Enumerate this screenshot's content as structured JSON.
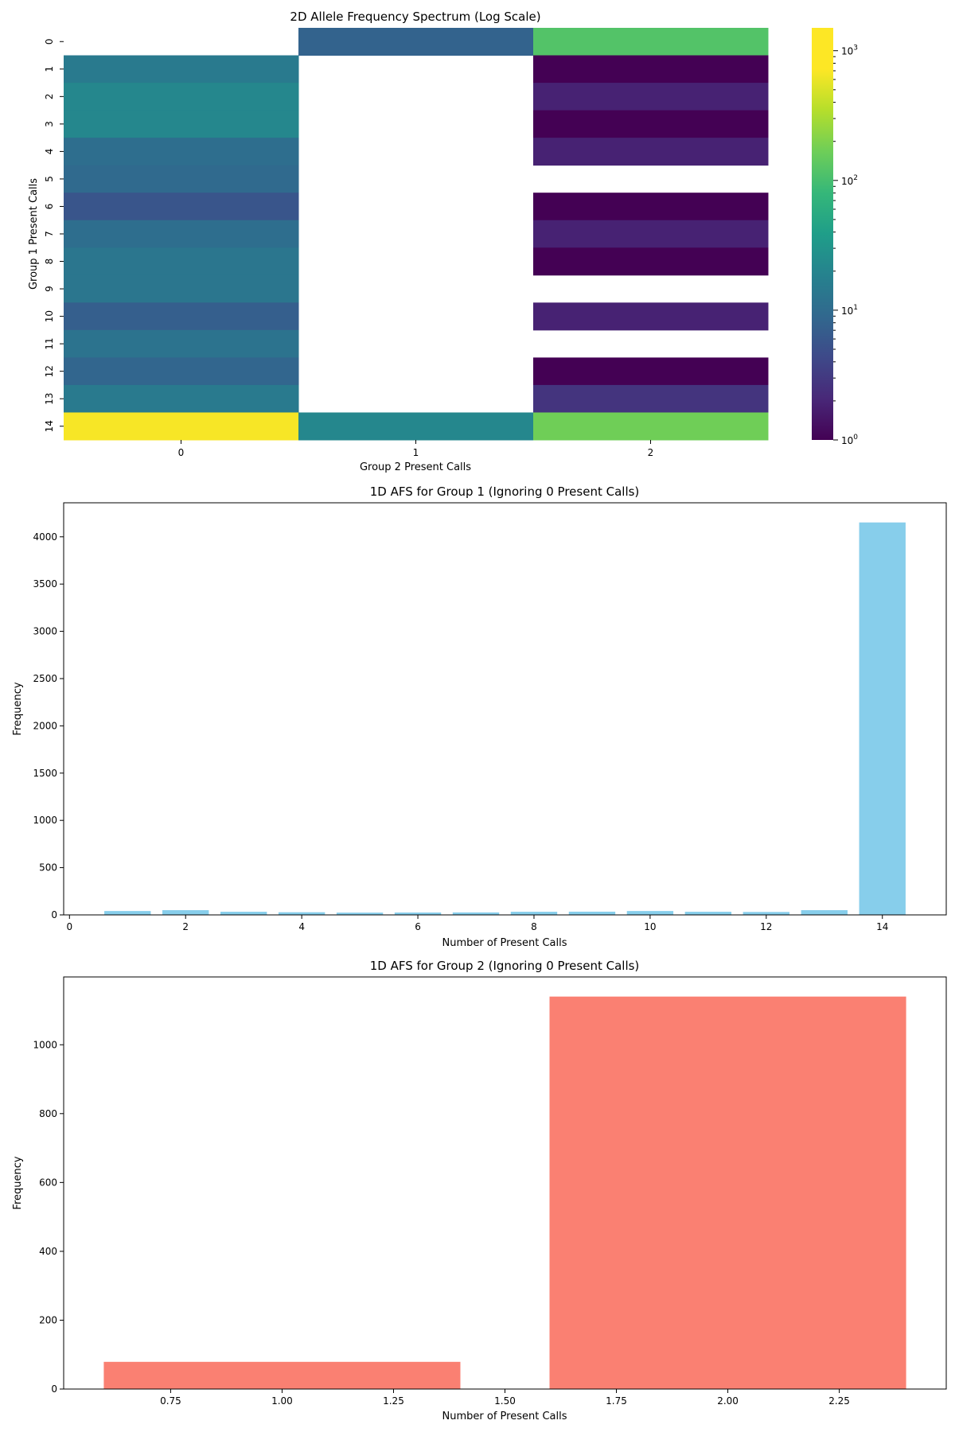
{
  "chart_data": [
    {
      "type": "heatmap",
      "title": "2D Allele Frequency Spectrum (Log Scale)",
      "xlabel": "Group 2 Present Calls",
      "ylabel": "Group 1 Present Calls",
      "x_categories": [
        "0",
        "1",
        "2"
      ],
      "y_categories": [
        "0",
        "1",
        "2",
        "3",
        "4",
        "5",
        "6",
        "7",
        "8",
        "9",
        "10",
        "11",
        "12",
        "13",
        "14"
      ],
      "values": [
        [
          null,
          10,
          200
        ],
        [
          20,
          null,
          1
        ],
        [
          30,
          null,
          2
        ],
        [
          30,
          null,
          1
        ],
        [
          14,
          null,
          2
        ],
        [
          12,
          null,
          null
        ],
        [
          7,
          null,
          1
        ],
        [
          14,
          null,
          2
        ],
        [
          18,
          null,
          1
        ],
        [
          18,
          null,
          null
        ],
        [
          9,
          null,
          2
        ],
        [
          16,
          null,
          null
        ],
        [
          11,
          null,
          1
        ],
        [
          20,
          null,
          3
        ],
        [
          1400,
          30,
          300
        ]
      ],
      "color_scale": "log",
      "colormap": "viridis",
      "colorbar_range": [
        1,
        1500
      ],
      "colorbar_ticks": [
        {
          "value": 1,
          "label": "10",
          "exp": "0"
        },
        {
          "value": 10,
          "label": "10",
          "exp": "1"
        },
        {
          "value": 100,
          "label": "10",
          "exp": "2"
        },
        {
          "value": 1000,
          "label": "10",
          "exp": "3"
        }
      ]
    },
    {
      "type": "bar",
      "title": "1D AFS for Group 1 (Ignoring 0 Present Calls)",
      "xlabel": "Number of Present Calls",
      "ylabel": "Frequency",
      "x": [
        1,
        2,
        3,
        4,
        5,
        6,
        7,
        8,
        9,
        10,
        11,
        12,
        13,
        14
      ],
      "values": [
        41,
        50,
        33,
        28,
        24,
        25,
        26,
        33,
        34,
        41,
        33,
        31,
        50,
        4152
      ],
      "color": "#87ceeb",
      "xlim": [
        -0.1,
        15.1
      ],
      "ylim": [
        0,
        4360
      ],
      "xticks": [
        0,
        2,
        4,
        6,
        8,
        10,
        12,
        14
      ],
      "yticks": [
        0,
        500,
        1000,
        1500,
        2000,
        2500,
        3000,
        3500,
        4000
      ]
    },
    {
      "type": "bar",
      "title": "1D AFS for Group 2 (Ignoring 0 Present Calls)",
      "xlabel": "Number of Present Calls",
      "ylabel": "Frequency",
      "x": [
        1,
        2
      ],
      "values": [
        79,
        1140
      ],
      "color": "#fa8072",
      "xlim": [
        0.51,
        2.49
      ],
      "ylim": [
        0,
        1197
      ],
      "xticks": [
        0.75,
        1.0,
        1.25,
        1.5,
        1.75,
        2.0,
        2.25
      ],
      "xtick_labels": [
        "0.75",
        "1.00",
        "1.25",
        "1.50",
        "1.75",
        "2.00",
        "2.25"
      ],
      "yticks": [
        0,
        200,
        400,
        600,
        800,
        1000
      ]
    }
  ]
}
